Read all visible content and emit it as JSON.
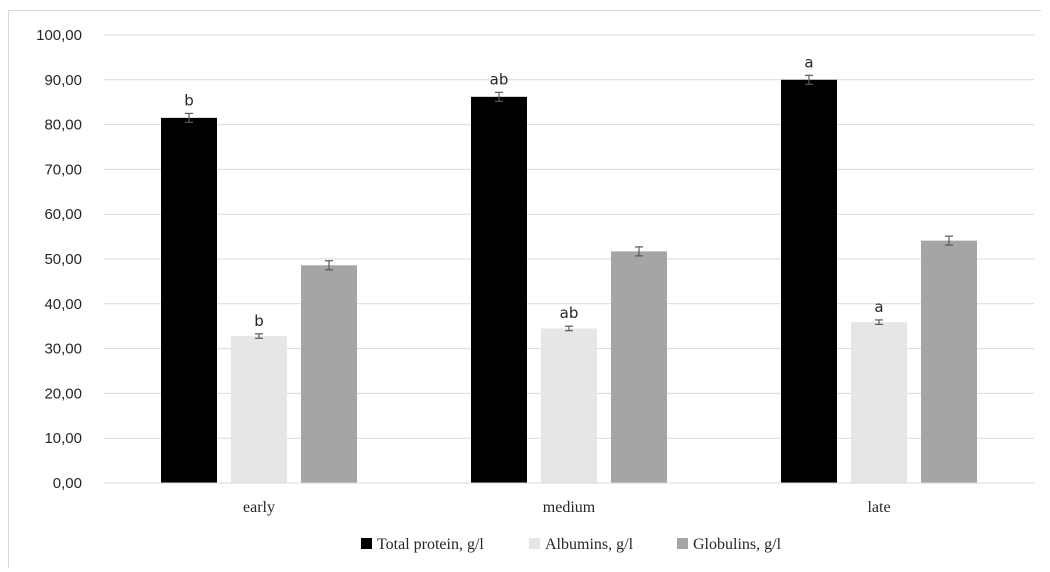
{
  "chart_data": {
    "type": "bar",
    "categories": [
      "early",
      "medium",
      "late"
    ],
    "series": [
      {
        "name": "Total protein, g/l",
        "color": "#000000",
        "values": [
          81.5,
          86.2,
          90.0
        ],
        "errors": [
          1.0,
          1.0,
          1.0
        ],
        "labels": [
          "b",
          "ab",
          "a"
        ]
      },
      {
        "name": "Albumins, g/l",
        "color": "#e7e6e6",
        "values": [
          32.8,
          34.5,
          35.9
        ],
        "errors": [
          0.5,
          0.5,
          0.5
        ],
        "labels": [
          "b",
          "ab",
          "a"
        ]
      },
      {
        "name": "Globulins, g/l",
        "color": "#a5a5a5",
        "values": [
          48.6,
          51.7,
          54.1
        ],
        "errors": [
          1.0,
          1.0,
          1.0
        ],
        "labels": [
          "",
          "",
          ""
        ]
      }
    ],
    "ylim": [
      0,
      100
    ],
    "yticks": [
      "0,00",
      "10,00",
      "20,00",
      "30,00",
      "40,00",
      "50,00",
      "60,00",
      "70,00",
      "80,00",
      "90,00",
      "100,00"
    ],
    "grid": true,
    "legend_position": "bottom",
    "title": "",
    "xlabel": "",
    "ylabel": ""
  }
}
